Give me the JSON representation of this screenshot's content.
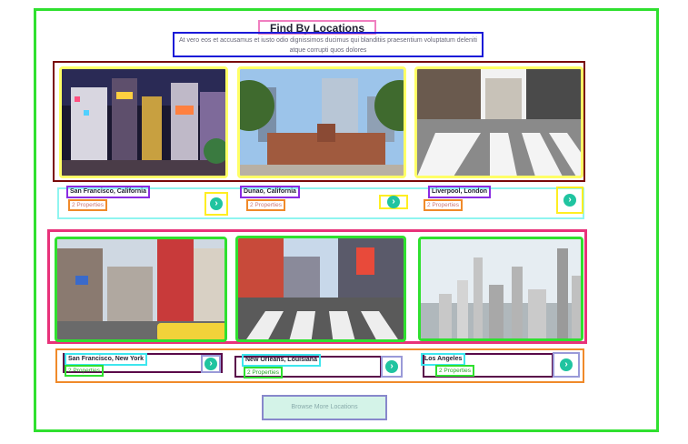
{
  "section": {
    "title": "Find By Locations",
    "description": "At vero eos et accusamus et iusto odio dignissimos ducimus qui blanditiis praesentium voluptatum deleniti atque corrupti quos dolores"
  },
  "locations": [
    {
      "name": "San Francisco, California",
      "count": "2 Properties",
      "scene": "tokyo-night-street-icon"
    },
    {
      "name": "Dunao, California",
      "count": "2 Properties",
      "scene": "tokyo-station-icon"
    },
    {
      "name": "Liverpool, London",
      "count": "2 Properties",
      "scene": "crosswalk-icon"
    },
    {
      "name": "San Francisco, New York",
      "count": "2 Properties",
      "scene": "shibuya-street-icon"
    },
    {
      "name": "New Orleans, Louisiana",
      "count": "2 Properties",
      "scene": "busy-crossing-icon"
    },
    {
      "name": "Los Angeles",
      "count": "2 Properties",
      "scene": "skyline-icon"
    }
  ],
  "browse_label": "Browse More Locations",
  "colors": {
    "accent": "#20c4a0",
    "button_bg": "#d4f3e8"
  }
}
